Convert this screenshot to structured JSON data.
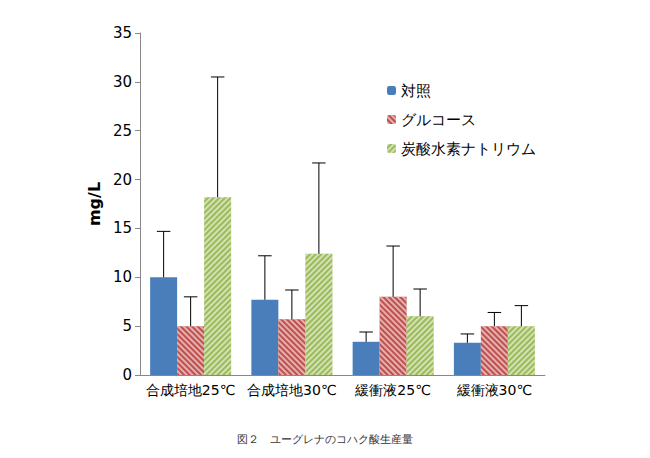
{
  "chart_data": {
    "type": "bar",
    "title": "図２　ユーグレナのコハク酸生産量",
    "ylabel": "mg/L",
    "categories": [
      "合成培地25℃",
      "合成培地30℃",
      "緩衝液25℃",
      "緩衝液30℃"
    ],
    "series": [
      {
        "name": "対照",
        "color": "#4a7ebb",
        "values": [
          10.0,
          7.7,
          3.4,
          3.3
        ],
        "error": [
          4.7,
          4.5,
          1.0,
          0.9
        ]
      },
      {
        "name": "グルコース",
        "color": "#c0504d",
        "values": [
          5.0,
          5.7,
          8.0,
          5.0
        ],
        "error": [
          3.0,
          3.0,
          5.2,
          1.4
        ]
      },
      {
        "name": "炭酸水素ナトリウム",
        "color": "#9bbb59",
        "values": [
          18.2,
          12.4,
          6.0,
          5.0
        ],
        "error": [
          12.3,
          9.3,
          2.8,
          2.1
        ]
      }
    ],
    "ylim": [
      0,
      35
    ],
    "yticks": [
      0,
      5,
      10,
      15,
      20,
      25,
      30,
      35
    ],
    "grid": false,
    "legend": "upper right"
  }
}
